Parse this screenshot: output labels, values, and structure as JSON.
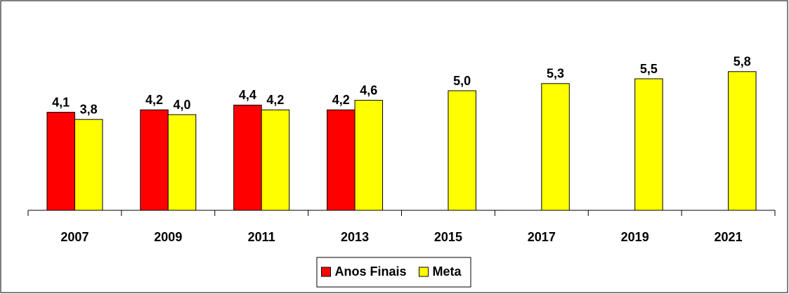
{
  "chart_data": {
    "type": "bar",
    "categories": [
      "2007",
      "2009",
      "2011",
      "2013",
      "2015",
      "2017",
      "2019",
      "2021"
    ],
    "series": [
      {
        "name": "Anos Finais",
        "color": "#ff0000",
        "values": [
          4.1,
          4.2,
          4.4,
          4.2,
          null,
          null,
          null,
          null
        ],
        "value_labels": [
          "4,1",
          "4,2",
          "4,4",
          "4,2",
          null,
          null,
          null,
          null
        ]
      },
      {
        "name": "Meta",
        "color": "#ffff00",
        "values": [
          3.8,
          4.0,
          4.2,
          4.6,
          5.0,
          5.3,
          5.5,
          5.8
        ],
        "value_labels": [
          "3,8",
          "4,0",
          "4,2",
          "4,6",
          "5,0",
          "5,3",
          "5,5",
          "5,8"
        ]
      }
    ],
    "ylim": [
      0,
      7
    ],
    "legend": "bottom"
  }
}
